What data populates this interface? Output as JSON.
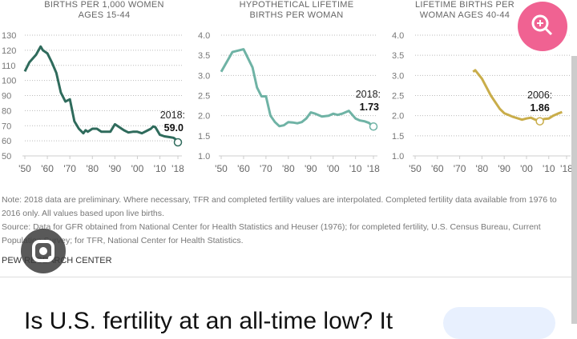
{
  "chart_data": [
    {
      "type": "line",
      "title": [
        "BIRTHS PER 1,000 WOMEN",
        "AGES 15-44"
      ],
      "ylim": [
        50,
        130
      ],
      "yticks": [
        50,
        60,
        70,
        80,
        90,
        100,
        110,
        120,
        130
      ],
      "xticks": [
        "'50",
        "'60",
        "'70",
        "'80",
        "'90",
        "'00",
        "'10",
        "'18"
      ],
      "color": "#2f6b5c",
      "x": [
        1950,
        1952,
        1955,
        1957,
        1958,
        1960,
        1962,
        1964,
        1966,
        1968,
        1970,
        1972,
        1974,
        1976,
        1977,
        1978,
        1980,
        1982,
        1984,
        1986,
        1988,
        1990,
        1992,
        1994,
        1996,
        1998,
        2000,
        2002,
        2004,
        2006,
        2007,
        2008,
        2010,
        2012,
        2014,
        2016,
        2017,
        2018
      ],
      "y": [
        106,
        112,
        117,
        122.5,
        120,
        118,
        112,
        105,
        92,
        86,
        87.5,
        73,
        68,
        65,
        67,
        66,
        68,
        68,
        66,
        66,
        66,
        71,
        69,
        67,
        65.5,
        66,
        66,
        65,
        66.5,
        68,
        69.5,
        69,
        64,
        63,
        62.5,
        62,
        61,
        59
      ],
      "annotation": {
        "label": "2018:",
        "value": "59.0"
      }
    },
    {
      "type": "line",
      "title": [
        "HYPOTHETICAL LIFETIME",
        "BIRTHS PER WOMAN"
      ],
      "ylim": [
        1.0,
        4.0
      ],
      "yticks": [
        "1.0",
        "1.5",
        "2.0",
        "2.5",
        "3.0",
        "3.5",
        "4.0"
      ],
      "xticks": [
        "'50",
        "'60",
        "'70",
        "'80",
        "'90",
        "'00",
        "'10",
        "'18"
      ],
      "color": "#6fb3a5",
      "x": [
        1950,
        1955,
        1960,
        1964,
        1966,
        1968,
        1970,
        1972,
        1974,
        1976,
        1978,
        1980,
        1982,
        1984,
        1986,
        1988,
        1990,
        1992,
        1995,
        1998,
        2000,
        2002,
        2004,
        2007,
        2010,
        2012,
        2014,
        2016,
        2017,
        2018
      ],
      "y": [
        3.09,
        3.58,
        3.65,
        3.2,
        2.7,
        2.48,
        2.48,
        2.0,
        1.84,
        1.74,
        1.76,
        1.84,
        1.83,
        1.81,
        1.84,
        1.93,
        2.08,
        2.05,
        1.98,
        2.0,
        2.05,
        2.02,
        2.05,
        2.12,
        1.93,
        1.88,
        1.86,
        1.82,
        1.77,
        1.73
      ],
      "annotation": {
        "label": "2018:",
        "value": "1.73"
      }
    },
    {
      "type": "line",
      "title": [
        "LIFETIME BIRTHS PER",
        "WOMAN AGES 40-44"
      ],
      "ylim": [
        1.0,
        4.0
      ],
      "yticks": [
        "1.0",
        "1.5",
        "2.0",
        "2.5",
        "3.0",
        "3.5",
        "4.0"
      ],
      "xticks": [
        "'50",
        "'60",
        "'70",
        "'80",
        "'90",
        "'00",
        "'10",
        "'18"
      ],
      "color": "#c9ad4a",
      "x": [
        1976,
        1977,
        1980,
        1984,
        1988,
        1990,
        1994,
        1998,
        2000,
        2002,
        2004,
        2006,
        2008,
        2010,
        2012,
        2014,
        2016
      ],
      "y": [
        3.09,
        3.13,
        2.92,
        2.5,
        2.17,
        2.06,
        1.97,
        1.9,
        1.93,
        1.95,
        1.9,
        1.86,
        1.92,
        1.93,
        2.0,
        2.05,
        2.09
      ],
      "annotation": {
        "label": "2006:",
        "value": "1.86",
        "x": 2006
      }
    }
  ],
  "note": "Note: 2018 data are preliminary. Where necessary, TFR and completed fertility values are interpolated. Completed fertility data available from 1976 to 2016 only. All values based upon live births.",
  "source": "Source: Data for GFR obtained from National Center for Health Statistics and Heuser (1976); for completed fertility, U.S. Census Bureau, Current Population Survey; for TFR, National Center for Health Statistics.",
  "org": "PEW RESEARCH CENTER",
  "headline": "Is U.S. fertility at an all-time low? It",
  "icons": {
    "lens": "google-lens-icon",
    "zoom": "zoom-in-icon"
  }
}
